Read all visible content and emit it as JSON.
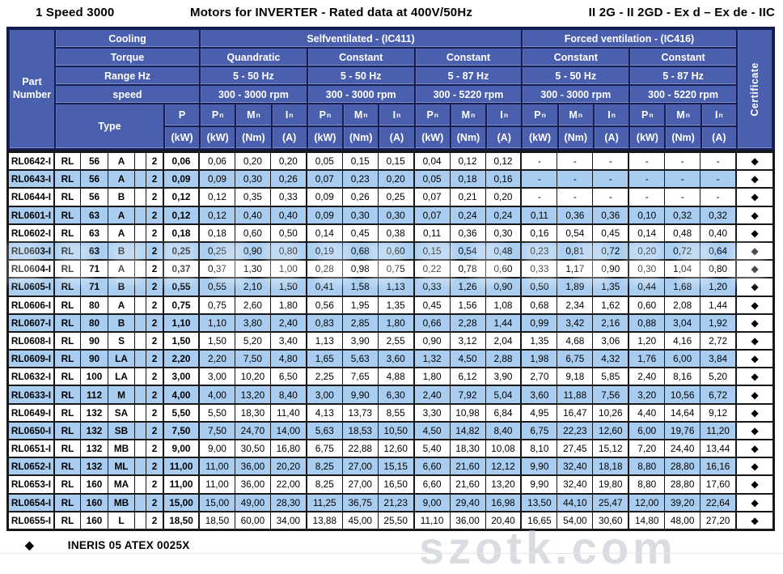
{
  "title": {
    "left": "1 Speed 3000",
    "center": "Motors for INVERTER - Rated data at 400V/50Hz",
    "right": "II 2G - II 2GD - Ex d – Ex de - IIC"
  },
  "header": {
    "part_number": "Part Number",
    "cooling_label": "Cooling",
    "torque_label": "Torque",
    "range_label": "Range Hz",
    "speed_label": "speed",
    "type_label": "Type",
    "certificate_label": "Certificate",
    "power_label": "P",
    "power_unit": "(kW)",
    "cooling_groups": [
      {
        "label": "Selfventilated - (IC411)"
      },
      {
        "label": "Forced ventilation - (IC416)"
      }
    ],
    "groups": [
      {
        "torque": "Quandratic",
        "range": "5 - 50 Hz",
        "speed": "300 - 3000 rpm"
      },
      {
        "torque": "Constant",
        "range": "5 - 50 Hz",
        "speed": "300 - 3000 rpm"
      },
      {
        "torque": "Constant",
        "range": "5 - 87 Hz",
        "speed": "300 - 5220 rpm"
      },
      {
        "torque": "Constant",
        "range": "5 - 50 Hz",
        "speed": "300 - 3000 rpm"
      },
      {
        "torque": "Constant",
        "range": "5 - 87 Hz",
        "speed": "300 - 5220 rpm"
      }
    ],
    "col_symbols": [
      {
        "main": "P",
        "sub": "n",
        "unit": "(kW)"
      },
      {
        "main": "M",
        "sub": "n",
        "unit": "(Nm)"
      },
      {
        "main": "I",
        "sub": "n",
        "unit": "(A)"
      }
    ]
  },
  "rows": [
    {
      "part": "RL0642-I",
      "prefix": "RL",
      "frame": "56",
      "size": "A",
      "poles": "2",
      "p": "0,06",
      "values": [
        "0,06",
        "0,20",
        "0,20",
        "0,05",
        "0,15",
        "0,15",
        "0,04",
        "0,12",
        "0,12",
        "-",
        "-",
        "-",
        "-",
        "-",
        "-"
      ],
      "certificate": "◆"
    },
    {
      "part": "RL0643-I",
      "prefix": "RL",
      "frame": "56",
      "size": "A",
      "poles": "2",
      "p": "0,09",
      "values": [
        "0,09",
        "0,30",
        "0,26",
        "0,07",
        "0,23",
        "0,20",
        "0,05",
        "0,18",
        "0,16",
        "-",
        "-",
        "-",
        "-",
        "-",
        "-"
      ],
      "certificate": "◆"
    },
    {
      "part": "RL0644-I",
      "prefix": "RL",
      "frame": "56",
      "size": "B",
      "poles": "2",
      "p": "0,12",
      "values": [
        "0,12",
        "0,35",
        "0,33",
        "0,09",
        "0,26",
        "0,25",
        "0,07",
        "0,21",
        "0,20",
        "-",
        "-",
        "-",
        "-",
        "-",
        "-"
      ],
      "certificate": "◆"
    },
    {
      "part": "RL0601-I",
      "prefix": "RL",
      "frame": "63",
      "size": "A",
      "poles": "2",
      "p": "0,12",
      "values": [
        "0,12",
        "0,40",
        "0,40",
        "0,09",
        "0,30",
        "0,30",
        "0,07",
        "0,24",
        "0,24",
        "0,11",
        "0,36",
        "0,36",
        "0,10",
        "0,32",
        "0,32"
      ],
      "certificate": "◆"
    },
    {
      "part": "RL0602-I",
      "prefix": "RL",
      "frame": "63",
      "size": "A",
      "poles": "2",
      "p": "0,18",
      "values": [
        "0,18",
        "0,60",
        "0,50",
        "0,14",
        "0,45",
        "0,38",
        "0,11",
        "0,36",
        "0,30",
        "0,16",
        "0,54",
        "0,45",
        "0,14",
        "0,48",
        "0,40"
      ],
      "certificate": "◆"
    },
    {
      "part": "RL0603-I",
      "prefix": "RL",
      "frame": "63",
      "size": "B",
      "poles": "2",
      "p": "0,25",
      "values": [
        "0,25",
        "0,90",
        "0,80",
        "0,19",
        "0,68",
        "0,60",
        "0,15",
        "0,54",
        "0,48",
        "0,23",
        "0,81",
        "0,72",
        "0,20",
        "0,72",
        "0,64"
      ],
      "certificate": "◆"
    },
    {
      "part": "RL0604-I",
      "prefix": "RL",
      "frame": "71",
      "size": "A",
      "poles": "2",
      "p": "0,37",
      "values": [
        "0,37",
        "1,30",
        "1,00",
        "0,28",
        "0,98",
        "0,75",
        "0,22",
        "0,78",
        "0,60",
        "0,33",
        "1,17",
        "0,90",
        "0,30",
        "1,04",
        "0,80"
      ],
      "certificate": "◆"
    },
    {
      "part": "RL0605-I",
      "prefix": "RL",
      "frame": "71",
      "size": "B",
      "poles": "2",
      "p": "0,55",
      "values": [
        "0,55",
        "2,10",
        "1,50",
        "0,41",
        "1,58",
        "1,13",
        "0,33",
        "1,26",
        "0,90",
        "0,50",
        "1,89",
        "1,35",
        "0,44",
        "1,68",
        "1,20"
      ],
      "certificate": "◆"
    },
    {
      "part": "RL0606-I",
      "prefix": "RL",
      "frame": "80",
      "size": "A",
      "poles": "2",
      "p": "0,75",
      "values": [
        "0,75",
        "2,60",
        "1,80",
        "0,56",
        "1,95",
        "1,35",
        "0,45",
        "1,56",
        "1,08",
        "0,68",
        "2,34",
        "1,62",
        "0,60",
        "2,08",
        "1,44"
      ],
      "certificate": "◆"
    },
    {
      "part": "RL0607-I",
      "prefix": "RL",
      "frame": "80",
      "size": "B",
      "poles": "2",
      "p": "1,10",
      "values": [
        "1,10",
        "3,80",
        "2,40",
        "0,83",
        "2,85",
        "1,80",
        "0,66",
        "2,28",
        "1,44",
        "0,99",
        "3,42",
        "2,16",
        "0,88",
        "3,04",
        "1,92"
      ],
      "certificate": "◆"
    },
    {
      "part": "RL0608-I",
      "prefix": "RL",
      "frame": "90",
      "size": "S",
      "poles": "2",
      "p": "1,50",
      "values": [
        "1,50",
        "5,20",
        "3,40",
        "1,13",
        "3,90",
        "2,55",
        "0,90",
        "3,12",
        "2,04",
        "1,35",
        "4,68",
        "3,06",
        "1,20",
        "4,16",
        "2,72"
      ],
      "certificate": "◆"
    },
    {
      "part": "RL0609-I",
      "prefix": "RL",
      "frame": "90",
      "size": "LA",
      "poles": "2",
      "p": "2,20",
      "values": [
        "2,20",
        "7,50",
        "4,80",
        "1,65",
        "5,63",
        "3,60",
        "1,32",
        "4,50",
        "2,88",
        "1,98",
        "6,75",
        "4,32",
        "1,76",
        "6,00",
        "3,84"
      ],
      "certificate": "◆"
    },
    {
      "part": "RL0632-I",
      "prefix": "RL",
      "frame": "100",
      "size": "LA",
      "poles": "2",
      "p": "3,00",
      "values": [
        "3,00",
        "10,20",
        "6,50",
        "2,25",
        "7,65",
        "4,88",
        "1,80",
        "6,12",
        "3,90",
        "2,70",
        "9,18",
        "5,85",
        "2,40",
        "8,16",
        "5,20"
      ],
      "certificate": "◆"
    },
    {
      "part": "RL0633-I",
      "prefix": "RL",
      "frame": "112",
      "size": "M",
      "poles": "2",
      "p": "4,00",
      "values": [
        "4,00",
        "13,20",
        "8,40",
        "3,00",
        "9,90",
        "6,30",
        "2,40",
        "7,92",
        "5,04",
        "3,60",
        "11,88",
        "7,56",
        "3,20",
        "10,56",
        "6,72"
      ],
      "certificate": "◆"
    },
    {
      "part": "RL0649-I",
      "prefix": "RL",
      "frame": "132",
      "size": "SA",
      "poles": "2",
      "p": "5,50",
      "values": [
        "5,50",
        "18,30",
        "11,40",
        "4,13",
        "13,73",
        "8,55",
        "3,30",
        "10,98",
        "6,84",
        "4,95",
        "16,47",
        "10,26",
        "4,40",
        "14,64",
        "9,12"
      ],
      "certificate": "◆"
    },
    {
      "part": "RL0650-I",
      "prefix": "RL",
      "frame": "132",
      "size": "SB",
      "poles": "2",
      "p": "7,50",
      "values": [
        "7,50",
        "24,70",
        "14,00",
        "5,63",
        "18,53",
        "10,50",
        "4,50",
        "14,82",
        "8,40",
        "6,75",
        "22,23",
        "12,60",
        "6,00",
        "19,76",
        "11,20"
      ],
      "certificate": "◆"
    },
    {
      "part": "RL0651-I",
      "prefix": "RL",
      "frame": "132",
      "size": "MB",
      "poles": "2",
      "p": "9,00",
      "values": [
        "9,00",
        "30,50",
        "16,80",
        "6,75",
        "22,88",
        "12,60",
        "5,40",
        "18,30",
        "10,08",
        "8,10",
        "27,45",
        "15,12",
        "7,20",
        "24,40",
        "13,44"
      ],
      "certificate": "◆"
    },
    {
      "part": "RL0652-I",
      "prefix": "RL",
      "frame": "132",
      "size": "ML",
      "poles": "2",
      "p": "11,00",
      "values": [
        "11,00",
        "36,00",
        "20,20",
        "8,25",
        "27,00",
        "15,15",
        "6,60",
        "21,60",
        "12,12",
        "9,90",
        "32,40",
        "18,18",
        "8,80",
        "28,80",
        "16,16"
      ],
      "certificate": "◆"
    },
    {
      "part": "RL0653-I",
      "prefix": "RL",
      "frame": "160",
      "size": "MA",
      "poles": "2",
      "p": "11,00",
      "values": [
        "11,00",
        "36,00",
        "22,00",
        "8,25",
        "27,00",
        "16,50",
        "6,60",
        "21,60",
        "13,20",
        "9,90",
        "32,40",
        "19,80",
        "8,80",
        "28,80",
        "17,60"
      ],
      "certificate": "◆"
    },
    {
      "part": "RL0654-I",
      "prefix": "RL",
      "frame": "160",
      "size": "MB",
      "poles": "2",
      "p": "15,00",
      "values": [
        "15,00",
        "49,00",
        "28,30",
        "11,25",
        "36,75",
        "21,23",
        "9,00",
        "29,40",
        "16,98",
        "13,50",
        "44,10",
        "25,47",
        "12,00",
        "39,20",
        "22,64"
      ],
      "certificate": "◆"
    },
    {
      "part": "RL0655-I",
      "prefix": "RL",
      "frame": "160",
      "size": "L",
      "poles": "2",
      "p": "18,50",
      "values": [
        "18,50",
        "60,00",
        "34,00",
        "13,88",
        "45,00",
        "25,50",
        "11,10",
        "36,00",
        "20,40",
        "16,65",
        "54,00",
        "30,60",
        "14,80",
        "48,00",
        "27,20"
      ],
      "certificate": "◆"
    }
  ],
  "footer": {
    "certificate_symbol": "◆",
    "text": "INERIS 05 ATEX 0025X"
  },
  "watermark": {
    "text": "szotk.com"
  },
  "colors": {
    "header_blue": "#4a5fad",
    "frame_navy": "#171e55",
    "row_blue": "#a9cdf0",
    "grid_black": "#181818"
  }
}
